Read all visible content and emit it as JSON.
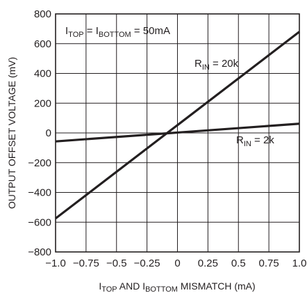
{
  "chart_data": {
    "type": "line",
    "xlabel": {
      "main": "I",
      "sub1": "TOP",
      "mid": " AND I",
      "sub2": "BOTTOM",
      "tail": " MISMATCH (mA)"
    },
    "ylabel": "OUTPUT OFFSET VOLTAGE (mV)",
    "xlim": [
      -1.0,
      1.0
    ],
    "ylim": [
      -800,
      800
    ],
    "x_ticks": [
      -1.0,
      -0.75,
      -0.5,
      -0.25,
      0,
      0.25,
      0.5,
      0.75,
      1.0
    ],
    "x_tick_labels": [
      "−1.0",
      "−0.75",
      "−0.5",
      "−0.25",
      "0",
      "0.25",
      "0.5",
      "0.75",
      "1.0"
    ],
    "y_ticks": [
      -800,
      -600,
      -400,
      -200,
      0,
      200,
      400,
      600,
      800
    ],
    "y_tick_labels": [
      "−800",
      "−600",
      "−400",
      "−200",
      "0",
      "200",
      "400",
      "600",
      "800"
    ],
    "grid": true,
    "annotation": {
      "p1": "I",
      "s1": "TOP",
      "p2": " = I",
      "s2": "BOTTOM",
      "p3": " = 50mA"
    },
    "series": [
      {
        "name": "R_IN = 20k",
        "label_main": "R",
        "label_sub": "IN",
        "label_tail": " = 20k",
        "x": [
          -1.0,
          1.0
        ],
        "y": [
          -575,
          680
        ]
      },
      {
        "name": "R_IN = 2k",
        "label_main": "R",
        "label_sub": "IN",
        "label_tail": " = 2k",
        "x": [
          -1.0,
          1.0
        ],
        "y": [
          -57,
          62
        ]
      }
    ]
  }
}
